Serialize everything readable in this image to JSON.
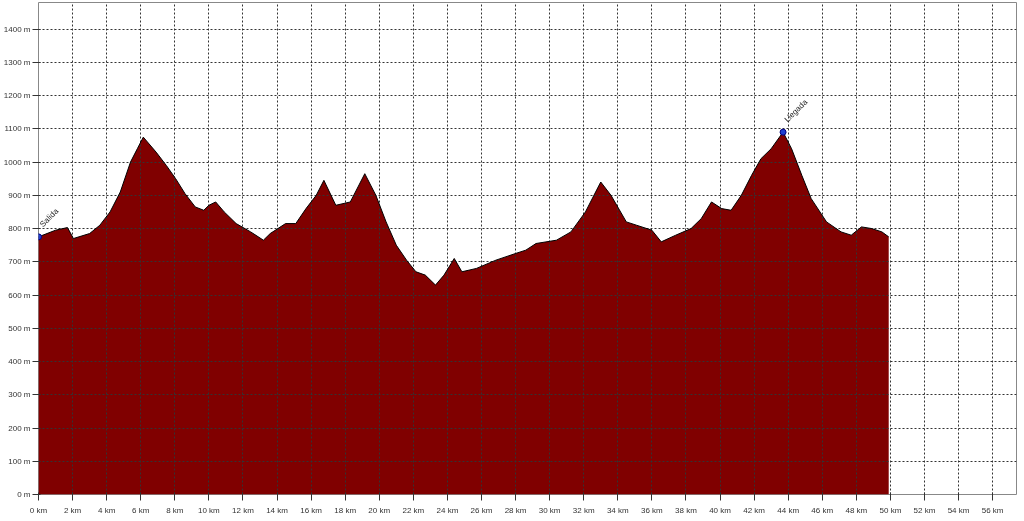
{
  "chart_data": {
    "type": "area",
    "color": "#800000",
    "x": [
      0,
      1.0,
      1.7,
      2.05,
      3.0,
      3.6,
      4.2,
      4.8,
      5.4,
      5.8,
      6.15,
      6.9,
      7.5,
      8.05,
      8.6,
      9.2,
      9.7,
      10.0,
      10.4,
      10.9,
      11.6,
      12.45,
      13.2,
      13.6,
      14.5,
      15.1,
      15.7,
      16.3,
      16.75,
      17.45,
      18.3,
      19.15,
      19.8,
      20.4,
      21.0,
      21.6,
      22.15,
      22.7,
      23.3,
      23.8,
      24.4,
      24.85,
      25.7,
      26.85,
      28.0,
      28.6,
      29.2,
      30.4,
      31.25,
      32.1,
      33.0,
      33.6,
      34.5,
      35.1,
      36.0,
      36.55,
      37.4,
      38.3,
      38.9,
      39.5,
      40.1,
      40.65,
      41.25,
      41.85,
      42.4,
      43.0,
      43.7,
      44.2,
      44.8,
      45.35,
      46.25,
      47.1,
      47.7,
      48.3,
      48.9,
      49.5,
      49.9
    ],
    "values": [
      775,
      795,
      803,
      770,
      785,
      810,
      850,
      910,
      1000,
      1040,
      1075,
      1030,
      990,
      950,
      905,
      865,
      855,
      870,
      880,
      850,
      815,
      790,
      765,
      785,
      815,
      815,
      860,
      900,
      945,
      870,
      880,
      965,
      900,
      820,
      750,
      705,
      670,
      660,
      630,
      660,
      710,
      670,
      680,
      705,
      725,
      735,
      755,
      765,
      790,
      850,
      940,
      900,
      820,
      810,
      795,
      760,
      780,
      800,
      830,
      880,
      860,
      855,
      900,
      960,
      1010,
      1040,
      1090,
      1040,
      960,
      890,
      820,
      790,
      780,
      805,
      800,
      790,
      775
    ],
    "xlim": [
      0,
      57.4
    ],
    "ylim": [
      0,
      1480
    ],
    "xticks": [
      {
        "value": 0,
        "label": "0 km"
      },
      {
        "value": 2,
        "label": "2 km"
      },
      {
        "value": 4,
        "label": "4 km"
      },
      {
        "value": 6,
        "label": "6 km"
      },
      {
        "value": 8,
        "label": "8 km"
      },
      {
        "value": 10,
        "label": "10 km"
      },
      {
        "value": 12,
        "label": "12 km"
      },
      {
        "value": 14,
        "label": "14 km"
      },
      {
        "value": 16,
        "label": "16 km"
      },
      {
        "value": 18,
        "label": "18 km"
      },
      {
        "value": 20,
        "label": "20 km"
      },
      {
        "value": 22,
        "label": "22 km"
      },
      {
        "value": 24,
        "label": "24 km"
      },
      {
        "value": 26,
        "label": "26 km"
      },
      {
        "value": 28,
        "label": "28 km"
      },
      {
        "value": 30,
        "label": "30 km"
      },
      {
        "value": 32,
        "label": "32 km"
      },
      {
        "value": 34,
        "label": "34 km"
      },
      {
        "value": 36,
        "label": "36 km"
      },
      {
        "value": 38,
        "label": "38 km"
      },
      {
        "value": 40,
        "label": "40 km"
      },
      {
        "value": 42,
        "label": "42 km"
      },
      {
        "value": 44,
        "label": "44 km"
      },
      {
        "value": 46,
        "label": "46 km"
      },
      {
        "value": 48,
        "label": "48 km"
      },
      {
        "value": 50,
        "label": "50 km"
      },
      {
        "value": 52,
        "label": "52 km"
      },
      {
        "value": 54,
        "label": "54 km"
      },
      {
        "value": 56,
        "label": "56 km"
      }
    ],
    "yticks": [
      {
        "value": 0,
        "label": "0 m"
      },
      {
        "value": 100,
        "label": "100 m"
      },
      {
        "value": 200,
        "label": "200 m"
      },
      {
        "value": 300,
        "label": "300 m"
      },
      {
        "value": 400,
        "label": "400 m"
      },
      {
        "value": 500,
        "label": "500 m"
      },
      {
        "value": 600,
        "label": "600 m"
      },
      {
        "value": 700,
        "label": "700 m"
      },
      {
        "value": 800,
        "label": "800 m"
      },
      {
        "value": 900,
        "label": "900 m"
      },
      {
        "value": 1000,
        "label": "1000 m"
      },
      {
        "value": 1100,
        "label": "1100 m"
      },
      {
        "value": 1200,
        "label": "1200 m"
      },
      {
        "value": 1300,
        "label": "1300 m"
      },
      {
        "value": 1400,
        "label": "1400 m"
      }
    ],
    "grid": true,
    "annotations": [
      {
        "text": "Salida",
        "x": 0,
        "y": 775
      },
      {
        "text": "Llegada",
        "x": 43.7,
        "y": 1090
      }
    ]
  }
}
